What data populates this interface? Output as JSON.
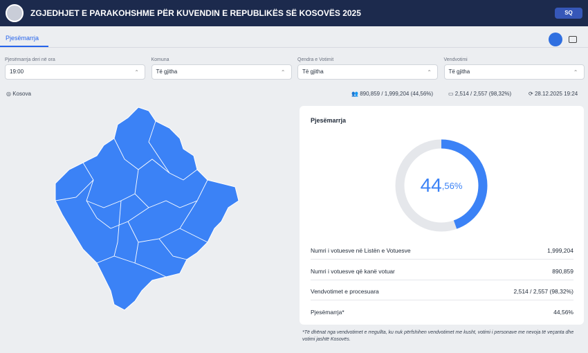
{
  "header": {
    "title": "ZGJEDHJET E PARAKOHSHME PËR KUVENDIN E REPUBLIKËS SË KOSOVËS 2025",
    "language": "SQ"
  },
  "tabs": {
    "active": "Pjesëmarrja"
  },
  "filters": [
    {
      "label": "Pjesëmarrja deri në ora",
      "value": "19:00"
    },
    {
      "label": "Komuna",
      "value": "Të gjitha"
    },
    {
      "label": "Qendra e Votimit",
      "value": "Të gjitha"
    },
    {
      "label": "Vendvotimi",
      "value": "Të gjitha"
    }
  ],
  "location": "Kosova",
  "stats": {
    "voters": "890,859 / 1,999,204 (44,56%)",
    "polling_stations": "2,514 / 2,557 (98,32%)",
    "updated": "28.12.2025 19:24"
  },
  "card": {
    "title": "Pjesëmarrja",
    "chart": {
      "value": 44.56,
      "value_integer": "44",
      "value_decimal": ",56%"
    },
    "rows": [
      {
        "label": "Numri i votuesve në Listën e Votuesve",
        "value": "1,999,204"
      },
      {
        "label": "Numri i votuesve që kanë votuar",
        "value": "890,859"
      },
      {
        "label": "Vendvotimet e procesuara",
        "value": "2,514 / 2,557 (98,32%)"
      },
      {
        "label": "Pjesëmarrja*",
        "value": "44,56%"
      }
    ]
  },
  "footnote": "*Të dhënat nga vendvotimet e rregullta, ku nuk përfshihen vendvotimet me kusht, votimi i personave me nevoja të veçanta dhe votimi jashtë Kosovës."
}
